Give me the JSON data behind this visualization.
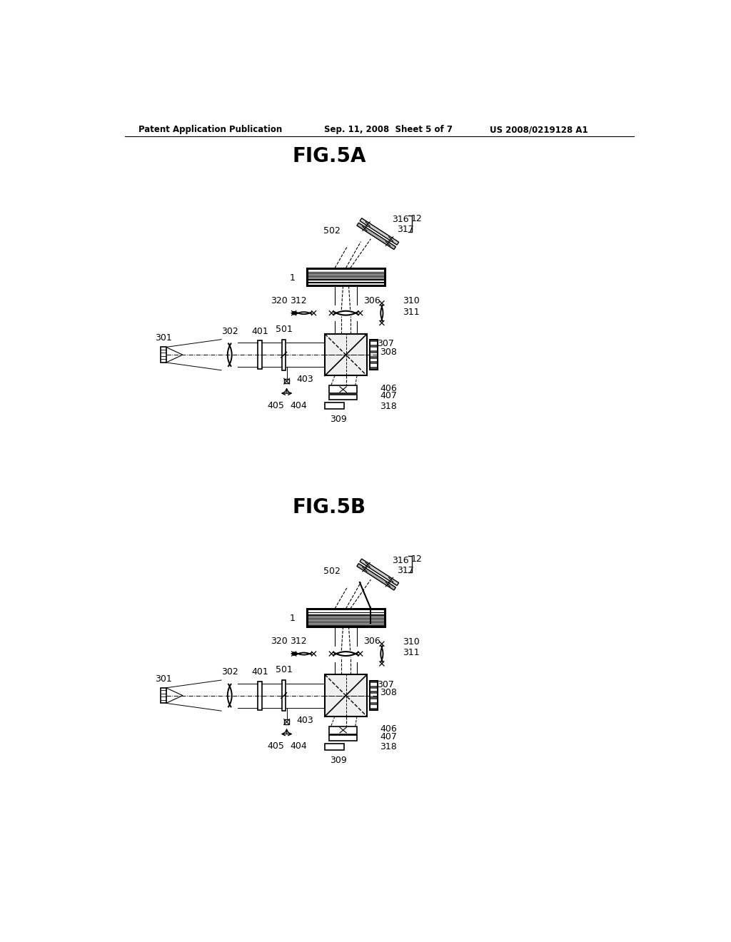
{
  "bg_color": "#ffffff",
  "line_color": "#000000",
  "fig_width": 10.24,
  "fig_height": 13.2,
  "header_left": "Patent Application Publication",
  "header_mid": "Sep. 11, 2008  Sheet 5 of 7",
  "header_right": "US 2008/0219128 A1",
  "title_5a": "FIG.5A",
  "title_5b": "FIG.5B"
}
